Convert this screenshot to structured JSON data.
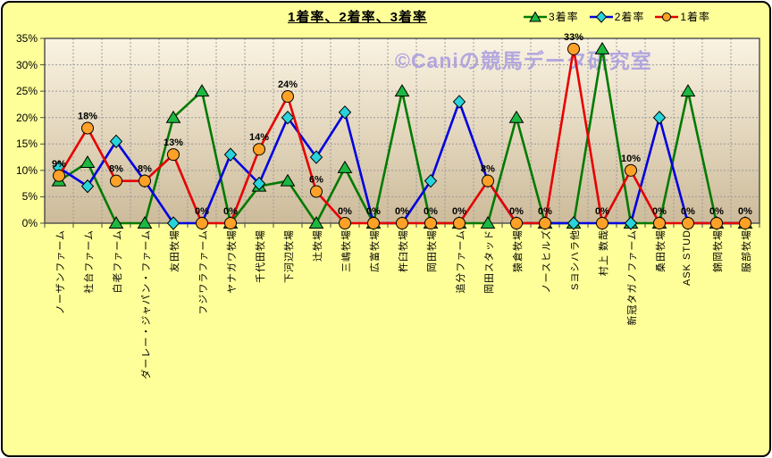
{
  "title": "1着率、2着率、3着率",
  "watermark": "©Caniの競馬データ研究室",
  "colors": {
    "canvas_bg": "#FFFF99",
    "plot_top": "#FAF3E2",
    "plot_bottom": "#CDBB9A",
    "watermark": "#A79BE0",
    "grid": "#9C9C9C",
    "axis": "#4A4A4A"
  },
  "chart_data": {
    "type": "line",
    "title": "1着率、2着率、3着率",
    "xlabel": "",
    "ylabel": "",
    "ylim": [
      0,
      35
    ],
    "y_tick_step": 5,
    "grid": true,
    "legend_position": "top-right",
    "y_tick_labels": [
      "0%",
      "5%",
      "10%",
      "15%",
      "20%",
      "25%",
      "30%",
      "35%"
    ],
    "categories": [
      "ノーザンファーム",
      "社台ファーム",
      "白老ファーム",
      "ダーレー・ジャパン・ファーム",
      "友田牧場",
      "フジワラファーム",
      "ヤナガワ牧場",
      "千代田牧場",
      "下河辺牧場",
      "辻牧場",
      "三嶋牧場",
      "広富牧場",
      "杵臼牧場",
      "岡田牧場",
      "追分ファーム",
      "岡田スタッド",
      "猿倉牧場",
      "ノースヒルズ",
      "Sヨシハラ他",
      "村上 数哉",
      "新冠タガノファーム",
      "桑田牧場",
      "ASK STUD",
      "錦岡牧場",
      "服部牧場"
    ],
    "series": [
      {
        "name": "3着率",
        "color": "#007A00",
        "marker": "triangle",
        "marker_fill": "#1CB841",
        "values": [
          8,
          11.5,
          0,
          0,
          20,
          25,
          0,
          7,
          8,
          0,
          10.5,
          0,
          25,
          0,
          0,
          0,
          20,
          0,
          0,
          33,
          0,
          0,
          25,
          0,
          0
        ]
      },
      {
        "name": "2着率",
        "color": "#0000E0",
        "marker": "diamond",
        "marker_fill": "#29D3DB",
        "values": [
          10.5,
          7,
          15.5,
          8,
          0,
          0,
          13,
          7.5,
          20,
          12.5,
          21,
          0,
          0,
          8,
          23,
          8,
          0,
          0,
          0,
          0,
          0,
          20,
          0,
          0,
          0
        ]
      },
      {
        "name": "1着率",
        "color": "#E60000",
        "marker": "circle",
        "marker_fill": "#FFA126",
        "values": [
          9,
          18,
          8,
          8,
          13,
          0,
          0,
          14,
          24,
          6,
          0,
          0,
          0,
          0,
          0,
          8,
          0,
          0,
          33,
          0,
          10,
          0,
          0,
          0,
          0
        ],
        "data_labels": [
          "9%",
          "18%",
          "8%",
          "8%",
          "13%",
          "0%",
          "0%",
          "14%",
          "24%",
          "6%",
          "0%",
          "0%",
          "0%",
          "0%",
          "0%",
          "8%",
          "0%",
          "0%",
          "33%",
          "0%",
          "10%",
          "0%",
          "0%",
          "0%",
          "0%"
        ]
      }
    ]
  }
}
